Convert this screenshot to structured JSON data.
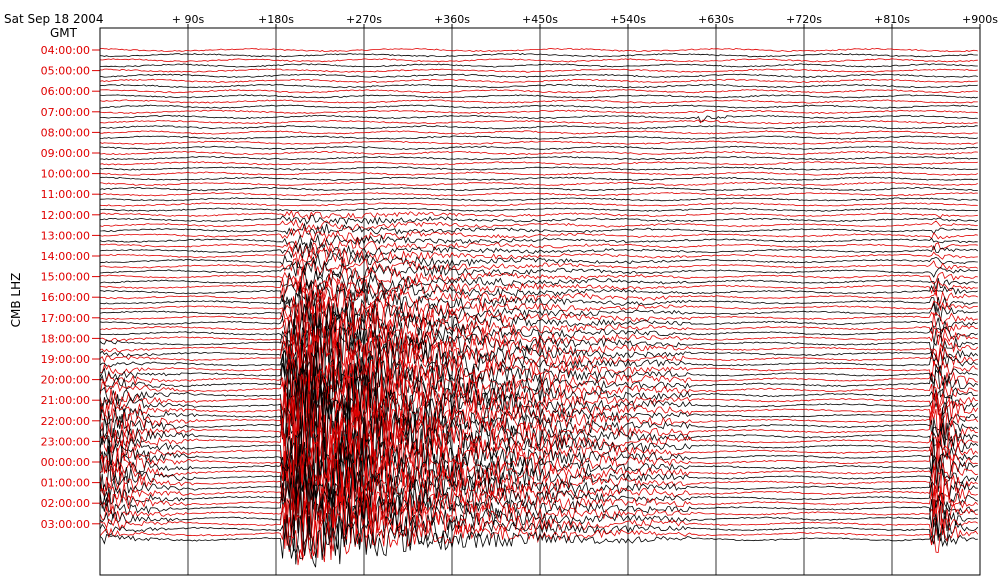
{
  "header": {
    "date": "Sat  Sep  18  2004",
    "timezone": "GMT",
    "station_label": "CMB  LHZ"
  },
  "colors": {
    "trace_a": "#000000",
    "trace_b": "#e00000",
    "axis": "#000000",
    "grid": "#000000",
    "background": "#ffffff"
  },
  "chart_data": {
    "type": "line",
    "title": "",
    "xlabel": "",
    "ylabel": "CMB  LHZ",
    "x_unit": "seconds",
    "xlim": [
      0,
      900
    ],
    "x_ticks": [
      {
        "value": 90,
        "label": "+  90s"
      },
      {
        "value": 180,
        "label": "+180s"
      },
      {
        "value": 270,
        "label": "+270s"
      },
      {
        "value": 360,
        "label": "+360s"
      },
      {
        "value": 450,
        "label": "+450s"
      },
      {
        "value": 540,
        "label": "+540s"
      },
      {
        "value": 630,
        "label": "+630s"
      },
      {
        "value": 720,
        "label": "+720s"
      },
      {
        "value": 810,
        "label": "+810s"
      },
      {
        "value": 900,
        "label": "+900s"
      }
    ],
    "hour_labels": [
      "04:00:00",
      "05:00:00",
      "06:00:00",
      "07:00:00",
      "08:00:00",
      "09:00:00",
      "10:00:00",
      "11:00:00",
      "12:00:00",
      "13:00:00",
      "14:00:00",
      "15:00:00",
      "16:00:00",
      "17:00:00",
      "18:00:00",
      "19:00:00",
      "20:00:00",
      "21:00:00",
      "22:00:00",
      "23:00:00",
      "00:00:00",
      "01:00:00",
      "02:00:00",
      "03:00:00"
    ],
    "traces_per_hour": 4,
    "grid": true,
    "events": [
      {
        "onset_s": 185,
        "duration_s": 420,
        "peak_trace": 76,
        "spread": 28,
        "amplitude": 60
      },
      {
        "onset_s": 0,
        "duration_s": 100,
        "peak_trace": 78,
        "spread": 14,
        "amplitude": 28
      },
      {
        "onset_s": 850,
        "duration_s": 50,
        "peak_trace": 80,
        "spread": 30,
        "amplitude": 40
      },
      {
        "onset_s": 610,
        "duration_s": 60,
        "peak_trace": 13,
        "spread": 1,
        "amplitude": 6
      }
    ]
  }
}
